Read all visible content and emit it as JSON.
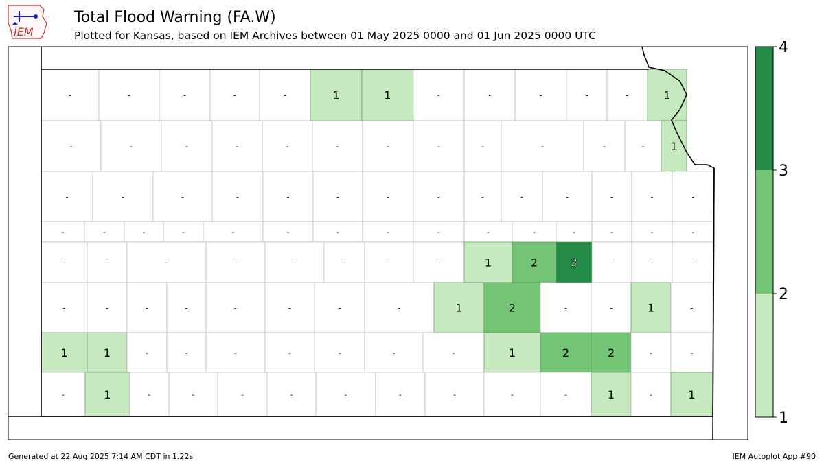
{
  "header": {
    "logo_text": "IEM",
    "title": "Total Flood Warning (FA.W)",
    "subtitle": "Plotted for Kansas, based on IEM Archives  between 01 May 2025 0000 and 01 Jun 2025 0000 UTC"
  },
  "footer": {
    "generated": "Generated at 22 Aug 2025 7:14 AM CDT in 1.22s",
    "app": "IEM Autoplot App #90"
  },
  "colors": {
    "c1": "#c7e9c0",
    "c2": "#74c476",
    "c3": "#238b45",
    "border": "#000000",
    "county_line": "#b0b0b0"
  },
  "legend": {
    "ticks": [
      "1",
      "2",
      "3",
      "4"
    ],
    "colors": [
      "#c7e9c0",
      "#74c476",
      "#238b45"
    ]
  },
  "map_data": {
    "counties": [
      {
        "count": 0,
        "label": "-"
      },
      {
        "count": 0,
        "label": "-"
      },
      {
        "count": 0,
        "label": "-"
      },
      {
        "count": 0,
        "label": "-"
      },
      {
        "count": 0,
        "label": "-"
      },
      {
        "count": 1,
        "label": "1"
      },
      {
        "count": 1,
        "label": "1"
      },
      {
        "count": 0,
        "label": "-"
      },
      {
        "count": 0,
        "label": "-"
      },
      {
        "count": 0,
        "label": "-"
      },
      {
        "count": 0,
        "label": "-"
      },
      {
        "count": 0,
        "label": "-"
      },
      {
        "count": 1,
        "label": "1"
      },
      {
        "count": 0,
        "label": "-"
      },
      {
        "count": 0,
        "label": "-"
      },
      {
        "count": 0,
        "label": "-"
      },
      {
        "count": 0,
        "label": "-"
      },
      {
        "count": 0,
        "label": "-"
      },
      {
        "count": 0,
        "label": "-"
      },
      {
        "count": 0,
        "label": "-"
      },
      {
        "count": 0,
        "label": "-"
      },
      {
        "count": 0,
        "label": "-"
      },
      {
        "count": 0,
        "label": "-"
      },
      {
        "count": 0,
        "label": "-"
      },
      {
        "count": 0,
        "label": "-"
      },
      {
        "count": 1,
        "label": "1"
      },
      {
        "count": 0,
        "label": "-"
      },
      {
        "count": 0,
        "label": "-"
      },
      {
        "count": 0,
        "label": "-"
      },
      {
        "count": 0,
        "label": "-"
      },
      {
        "count": 0,
        "label": "-"
      },
      {
        "count": 0,
        "label": "-"
      },
      {
        "count": 0,
        "label": "-"
      },
      {
        "count": 0,
        "label": "-"
      },
      {
        "count": 0,
        "label": "-"
      },
      {
        "count": 0,
        "label": "-"
      },
      {
        "count": 0,
        "label": "-"
      },
      {
        "count": 0,
        "label": "-"
      },
      {
        "count": 0,
        "label": "-"
      },
      {
        "count": 0,
        "label": "-"
      },
      {
        "count": 0,
        "label": "-"
      },
      {
        "count": 0,
        "label": "-"
      },
      {
        "count": 0,
        "label": "-"
      },
      {
        "count": 0,
        "label": "-"
      },
      {
        "count": 0,
        "label": "-"
      },
      {
        "count": 0,
        "label": "-"
      },
      {
        "count": 0,
        "label": "-"
      },
      {
        "count": 0,
        "label": "-"
      },
      {
        "count": 0,
        "label": "-"
      },
      {
        "count": 0,
        "label": "-"
      },
      {
        "count": 0,
        "label": "-"
      },
      {
        "count": 0,
        "label": "-"
      },
      {
        "count": 0,
        "label": "-"
      },
      {
        "count": 0,
        "label": "-"
      },
      {
        "count": 0,
        "label": "-"
      },
      {
        "count": 0,
        "label": "-"
      },
      {
        "count": 0,
        "label": "-"
      },
      {
        "count": 0,
        "label": "-"
      },
      {
        "count": 0,
        "label": "-"
      },
      {
        "count": 0,
        "label": "-"
      },
      {
        "count": 0,
        "label": "-"
      },
      {
        "count": 0,
        "label": "-"
      },
      {
        "count": 0,
        "label": "-"
      },
      {
        "count": 1,
        "label": "1"
      },
      {
        "count": 2,
        "label": "2"
      },
      {
        "count": 3,
        "label": "3"
      },
      {
        "count": 0,
        "label": "-"
      },
      {
        "count": 0,
        "label": "-"
      },
      {
        "count": 0,
        "label": "-"
      },
      {
        "count": 0,
        "label": "-"
      },
      {
        "count": 0,
        "label": "-"
      },
      {
        "count": 0,
        "label": "-"
      },
      {
        "count": 0,
        "label": "-"
      },
      {
        "count": 0,
        "label": "-"
      },
      {
        "count": 0,
        "label": "-"
      },
      {
        "count": 0,
        "label": "-"
      },
      {
        "count": 0,
        "label": "-"
      },
      {
        "count": 1,
        "label": "1"
      },
      {
        "count": 2,
        "label": "2"
      },
      {
        "count": 0,
        "label": "-"
      },
      {
        "count": 0,
        "label": "-"
      },
      {
        "count": 1,
        "label": "1"
      },
      {
        "count": 0,
        "label": "-"
      },
      {
        "count": 1,
        "label": "1"
      },
      {
        "count": 1,
        "label": "1"
      },
      {
        "count": 0,
        "label": "-"
      },
      {
        "count": 0,
        "label": "-"
      },
      {
        "count": 0,
        "label": "-"
      },
      {
        "count": 0,
        "label": "-"
      },
      {
        "count": 0,
        "label": "-"
      },
      {
        "count": 0,
        "label": "-"
      },
      {
        "count": 0,
        "label": "-"
      },
      {
        "count": 1,
        "label": "1"
      },
      {
        "count": 2,
        "label": "2"
      },
      {
        "count": 2,
        "label": "2"
      },
      {
        "count": 0,
        "label": "-"
      },
      {
        "count": 0,
        "label": "-"
      },
      {
        "count": 0,
        "label": "-"
      },
      {
        "count": 1,
        "label": "1"
      },
      {
        "count": 0,
        "label": "-"
      },
      {
        "count": 0,
        "label": "-"
      },
      {
        "count": 0,
        "label": "-"
      },
      {
        "count": 0,
        "label": "-"
      },
      {
        "count": 0,
        "label": "-"
      },
      {
        "count": 0,
        "label": "-"
      },
      {
        "count": 0,
        "label": "-"
      },
      {
        "count": 0,
        "label": "-"
      },
      {
        "count": 0,
        "label": "-"
      },
      {
        "count": 1,
        "label": "1"
      },
      {
        "count": 0,
        "label": "-"
      },
      {
        "count": 1,
        "label": "1"
      },
      {
        "count": 0,
        "label": "-"
      },
      {
        "count": 1,
        "label": "1"
      }
    ]
  }
}
